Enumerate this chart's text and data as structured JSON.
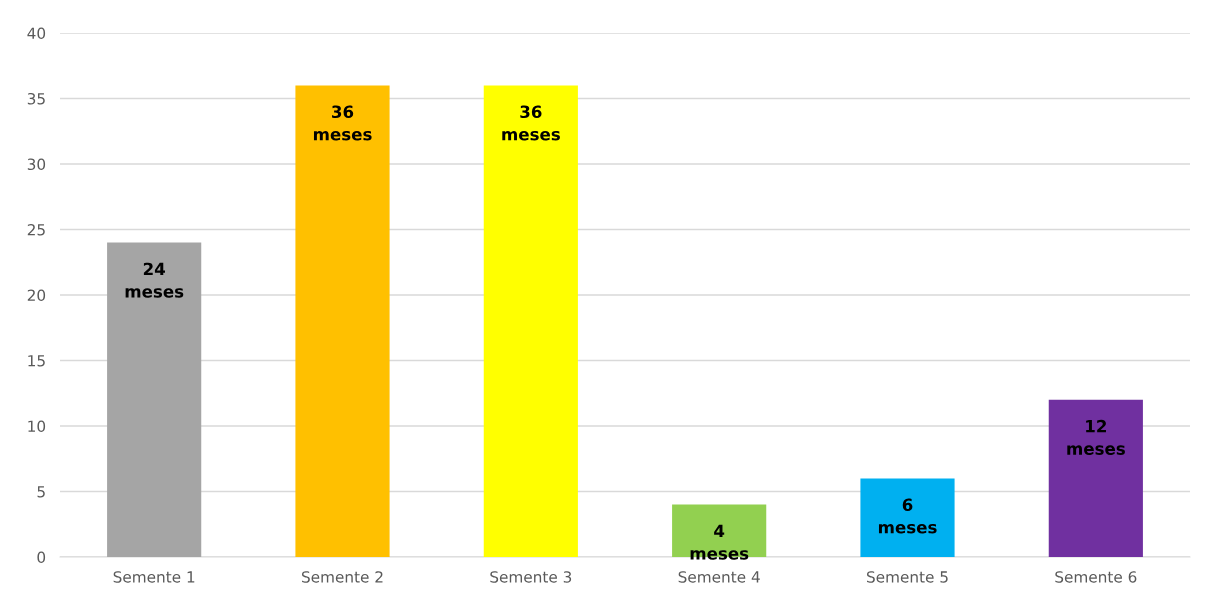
{
  "chart_data": {
    "type": "bar",
    "categories": [
      "Semente 1",
      "Semente 2",
      "Semente 3",
      "Semente 4",
      "Semente 5",
      "Semente 6"
    ],
    "values": [
      24,
      36,
      36,
      4,
      6,
      12
    ],
    "colors": [
      "#a5a5a5",
      "#ffc000",
      "#ffff00",
      "#92d050",
      "#00b0f0",
      "#7030a0"
    ],
    "value_labels": [
      "24\nmeses",
      "36\nmeses",
      "36\nmeses",
      "4\nmeses",
      "6\nmeses",
      "12\nmeses"
    ],
    "ylim": [
      0,
      40
    ],
    "yticks": [
      0,
      5,
      10,
      15,
      20,
      25,
      30,
      35,
      40
    ],
    "grid": "y",
    "legend": false
  }
}
